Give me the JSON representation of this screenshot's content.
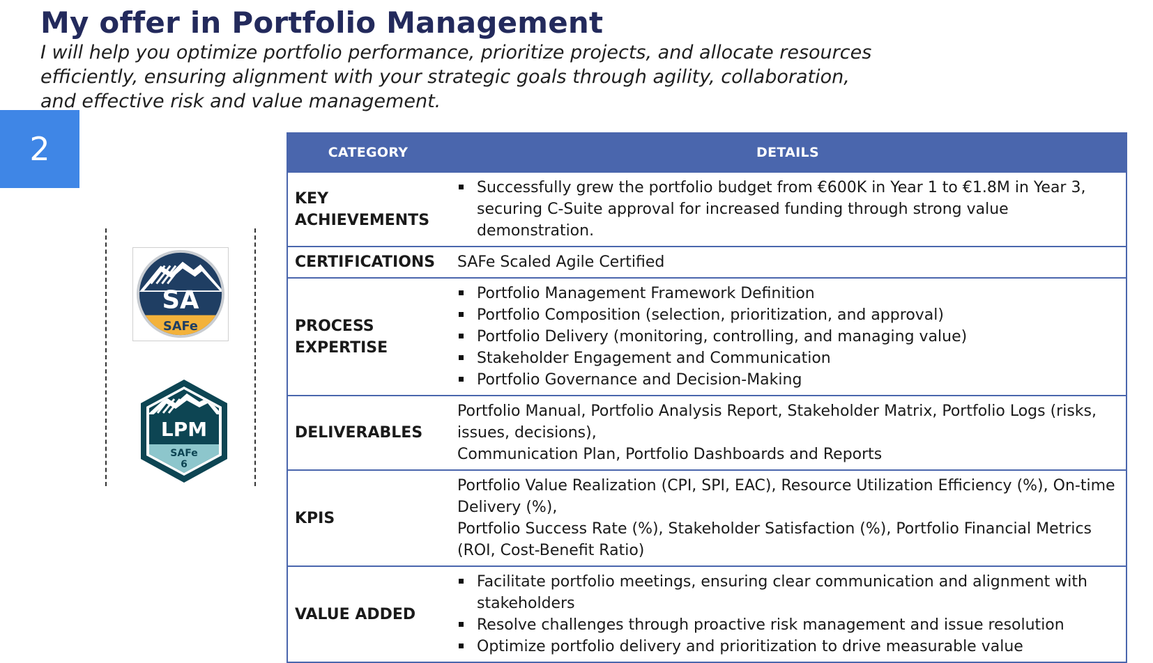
{
  "title": "My offer in Portfolio Management",
  "subtitle": "I will help you optimize portfolio performance, prioritize projects, and allocate resources efficiently, ensuring alignment with your strategic goals through agility, collaboration, and effective risk and value management.",
  "page_number": "2",
  "logos": {
    "sa": {
      "text": "SA",
      "brand": "SAFe",
      "colors": {
        "dark": "#1f3e63",
        "gold": "#f3b23b",
        "ring": "#c9cdd2"
      }
    },
    "lpm": {
      "text": "LPM",
      "brand": "SAFe",
      "version": "6",
      "colors": {
        "dark": "#0d4553",
        "light": "#8dc6cc"
      }
    }
  },
  "colors": {
    "title": "#232a5c",
    "header": "#4a66ad",
    "badge": "#3f86e6"
  },
  "table": {
    "headers": {
      "category": "CATEGORY",
      "details": "DETAILS"
    },
    "rows": [
      {
        "category": "KEY ACHIEVEMENTS",
        "bullets": [
          "Successfully grew the portfolio budget from €600K in Year 1 to €1.8M in Year 3, securing C-Suite approval for increased funding through strong value demonstration."
        ]
      },
      {
        "category": "CERTIFICATIONS",
        "lines": [
          "SAFe Scaled Agile Certified"
        ]
      },
      {
        "category": "PROCESS EXPERTISE",
        "bullets": [
          "Portfolio Management Framework Definition",
          "Portfolio Composition (selection, prioritization, and approval)",
          "Portfolio Delivery (monitoring, controlling, and managing value)",
          "Stakeholder Engagement and Communication",
          "Portfolio Governance and Decision-Making"
        ]
      },
      {
        "category": "DELIVERABLES",
        "lines": [
          "Portfolio Manual, Portfolio Analysis Report, Stakeholder Matrix, Portfolio Logs (risks, issues, decisions),",
          "Communication Plan, Portfolio Dashboards and Reports"
        ]
      },
      {
        "category": "KPIS",
        "lines": [
          "Portfolio Value Realization (CPI, SPI, EAC), Resource Utilization Efficiency (%), On-time Delivery (%),",
          "Portfolio Success Rate (%), Stakeholder Satisfaction (%), Portfolio Financial Metrics (ROI, Cost-Benefit Ratio)"
        ]
      },
      {
        "category": "VALUE ADDED",
        "bullets": [
          "Facilitate portfolio meetings, ensuring clear communication and alignment with stakeholders",
          "Resolve challenges through proactive risk management and issue resolution",
          "Optimize portfolio delivery and prioritization to drive measurable value"
        ]
      }
    ]
  }
}
